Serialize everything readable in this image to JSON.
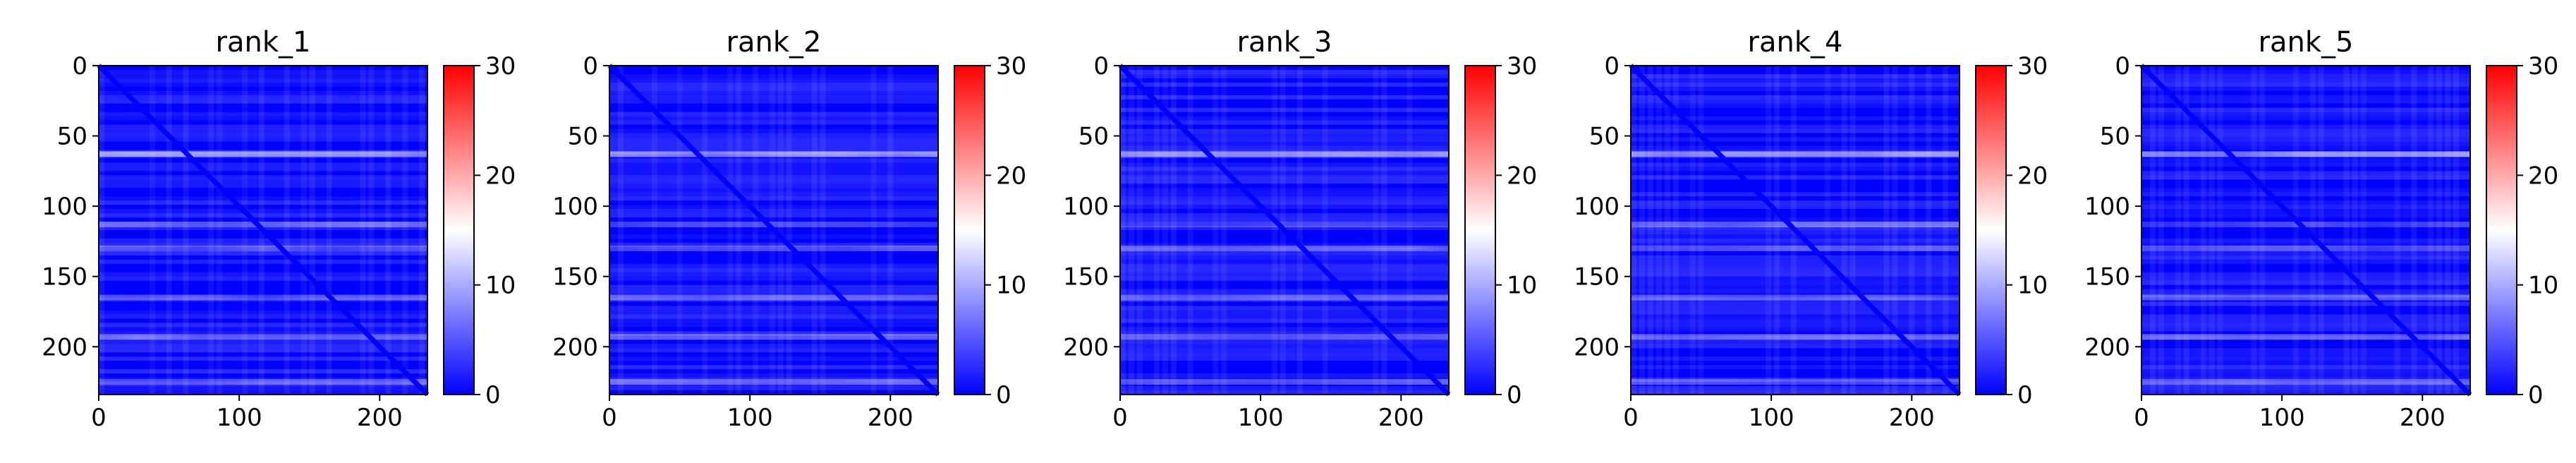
{
  "colormap": [
    "#0000ff",
    "#ffffff",
    "#ff0000"
  ],
  "chart_data": [
    {
      "type": "heatmap",
      "title": "rank_1",
      "xticks": [
        0,
        100,
        200
      ],
      "yticks": [
        0,
        50,
        100,
        150,
        200
      ],
      "x_range": [
        0,
        234
      ],
      "y_range": [
        0,
        234
      ],
      "colorbar_range": [
        0,
        30
      ],
      "colorbar_ticks": [
        0,
        10,
        20,
        30
      ],
      "bright_rows": [
        {
          "row": 63,
          "value": 12
        },
        {
          "row": 113,
          "value": 8
        },
        {
          "row": 130,
          "value": 7
        },
        {
          "row": 165,
          "value": 7
        },
        {
          "row": 193,
          "value": 8
        },
        {
          "row": 225,
          "value": 7
        }
      ],
      "diagonal_value": 0
    },
    {
      "type": "heatmap",
      "title": "rank_2",
      "xticks": [
        0,
        100,
        200
      ],
      "yticks": [
        0,
        50,
        100,
        150,
        200
      ],
      "x_range": [
        0,
        234
      ],
      "y_range": [
        0,
        234
      ],
      "colorbar_range": [
        0,
        30
      ],
      "colorbar_ticks": [
        0,
        10,
        20,
        30
      ],
      "bright_rows": [
        {
          "row": 63,
          "value": 13
        },
        {
          "row": 113,
          "value": 7
        },
        {
          "row": 130,
          "value": 7
        },
        {
          "row": 165,
          "value": 7
        },
        {
          "row": 193,
          "value": 8
        },
        {
          "row": 225,
          "value": 7
        }
      ],
      "diagonal_value": 0
    },
    {
      "type": "heatmap",
      "title": "rank_3",
      "xticks": [
        0,
        100,
        200
      ],
      "yticks": [
        0,
        50,
        100,
        150,
        200
      ],
      "x_range": [
        0,
        234
      ],
      "y_range": [
        0,
        234
      ],
      "colorbar_range": [
        0,
        30
      ],
      "colorbar_ticks": [
        0,
        10,
        20,
        30
      ],
      "bright_rows": [
        {
          "row": 63,
          "value": 12
        },
        {
          "row": 113,
          "value": 6
        },
        {
          "row": 130,
          "value": 7
        },
        {
          "row": 165,
          "value": 7
        },
        {
          "row": 193,
          "value": 8
        },
        {
          "row": 225,
          "value": 7
        }
      ],
      "diagonal_value": 0
    },
    {
      "type": "heatmap",
      "title": "rank_4",
      "xticks": [
        0,
        100,
        200
      ],
      "yticks": [
        0,
        50,
        100,
        150,
        200
      ],
      "x_range": [
        0,
        234
      ],
      "y_range": [
        0,
        234
      ],
      "colorbar_range": [
        0,
        30
      ],
      "colorbar_ticks": [
        0,
        10,
        20,
        30
      ],
      "bright_rows": [
        {
          "row": 63,
          "value": 13
        },
        {
          "row": 113,
          "value": 8
        },
        {
          "row": 130,
          "value": 7
        },
        {
          "row": 165,
          "value": 7
        },
        {
          "row": 193,
          "value": 8
        },
        {
          "row": 225,
          "value": 7
        }
      ],
      "diagonal_value": 0
    },
    {
      "type": "heatmap",
      "title": "rank_5",
      "xticks": [
        0,
        100,
        200
      ],
      "yticks": [
        0,
        50,
        100,
        150,
        200
      ],
      "x_range": [
        0,
        234
      ],
      "y_range": [
        0,
        234
      ],
      "colorbar_range": [
        0,
        30
      ],
      "colorbar_ticks": [
        0,
        10,
        20,
        30
      ],
      "bright_rows": [
        {
          "row": 63,
          "value": 12
        },
        {
          "row": 113,
          "value": 6
        },
        {
          "row": 130,
          "value": 7
        },
        {
          "row": 165,
          "value": 7
        },
        {
          "row": 193,
          "value": 8
        },
        {
          "row": 225,
          "value": 7
        }
      ],
      "diagonal_value": 0
    }
  ]
}
